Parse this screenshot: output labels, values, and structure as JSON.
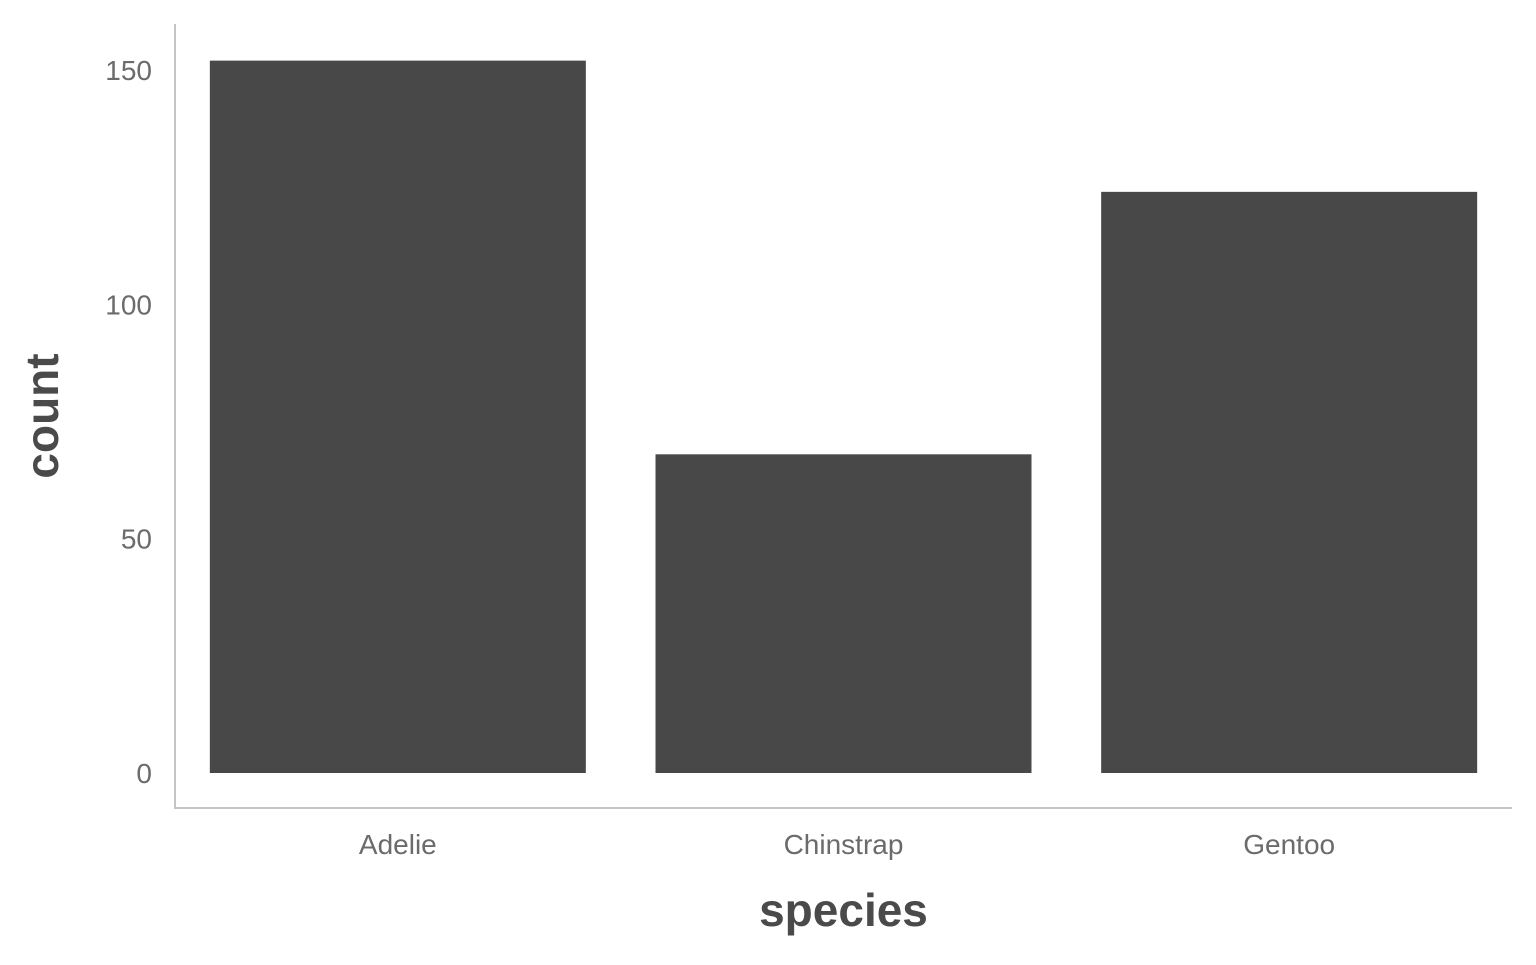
{
  "chart_data": {
    "type": "bar",
    "categories": [
      "Adelie",
      "Chinstrap",
      "Gentoo"
    ],
    "values": [
      152,
      68,
      124
    ],
    "title": "",
    "xlabel": "species",
    "ylabel": "count",
    "ylim": [
      0,
      160
    ],
    "yticks": [
      "0",
      "50",
      "100",
      "150"
    ],
    "ytick_values": [
      0,
      50,
      100,
      150
    ],
    "grid": false,
    "legend": "none",
    "bar_color": "#484848",
    "axis_color": "#c4c4c4",
    "tick_label_color": "#6b6b6b",
    "axis_title_color": "#4a4a4a"
  }
}
